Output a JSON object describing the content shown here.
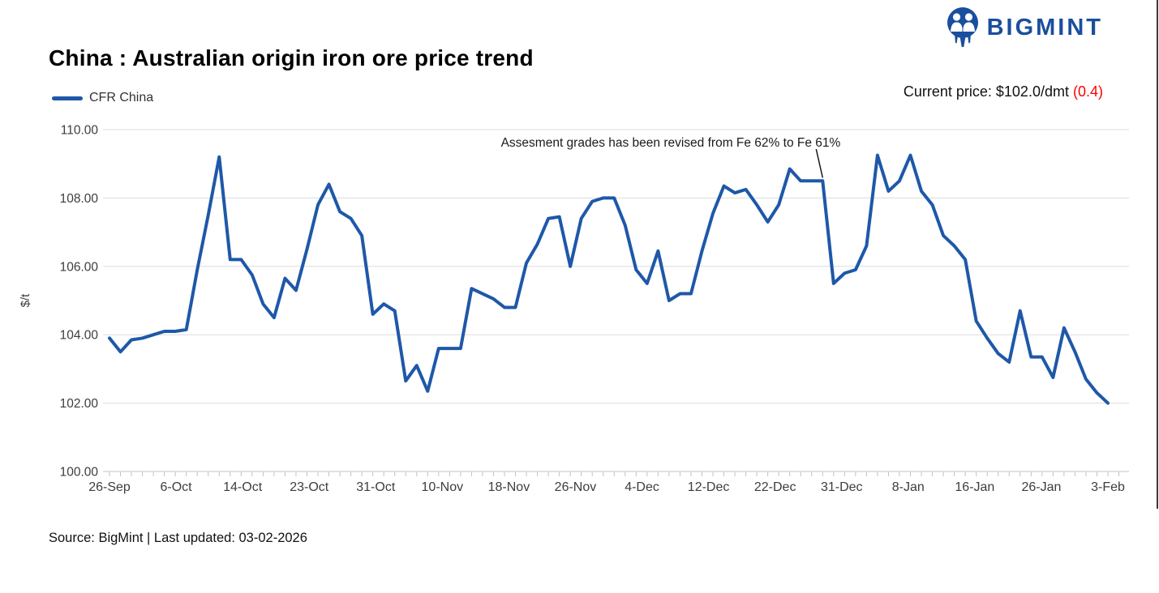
{
  "branding": {
    "logo_text": "BIGMINT",
    "logo_color": "#1a4e9e"
  },
  "header": {
    "title": "China : Australian origin iron ore price trend"
  },
  "price_info": {
    "label": "Current price: $102.0/dmt",
    "change": "(0.4)",
    "change_color": "#ff0000"
  },
  "legend": {
    "series_label": "CFR China"
  },
  "footer": {
    "source": "Source: BigMint | Last updated: 03-02-2026"
  },
  "chart_data": {
    "type": "line",
    "title": "China : Australian origin iron ore price trend",
    "ylabel": "$/t",
    "ylim": [
      100,
      110
    ],
    "grid": "horizontal",
    "legend_position": "top-left",
    "line_color": "#1e58a8",
    "grid_color": "#dcdcdc",
    "axis_color": "#c3c3c3",
    "tick_label_color": "#3d3d3d",
    "y_tick_labels": [
      "110.00",
      "108.00",
      "106.00",
      "104.00",
      "102.00",
      "100.00"
    ],
    "x_tick_labels": [
      "26-Sep",
      "6-Oct",
      "14-Oct",
      "23-Oct",
      "31-Oct",
      "10-Nov",
      "18-Nov",
      "26-Nov",
      "4-Dec",
      "12-Dec",
      "22-Dec",
      "31-Dec",
      "8-Jan",
      "16-Jan",
      "26-Jan",
      "3-Feb"
    ],
    "series": [
      {
        "name": "CFR China",
        "values": [
          103.9,
          103.5,
          103.85,
          103.9,
          104.0,
          104.1,
          104.1,
          104.15,
          105.9,
          107.5,
          109.2,
          106.2,
          106.2,
          105.75,
          104.9,
          104.5,
          105.65,
          105.3,
          106.5,
          107.8,
          108.4,
          107.6,
          107.4,
          106.9,
          104.6,
          104.9,
          104.7,
          102.65,
          103.1,
          102.35,
          103.6,
          103.6,
          103.6,
          105.35,
          105.2,
          105.05,
          104.8,
          104.8,
          106.1,
          106.65,
          107.4,
          107.45,
          106.0,
          107.4,
          107.9,
          108.0,
          108.0,
          107.2,
          105.9,
          105.5,
          106.45,
          105.0,
          105.2,
          105.2,
          106.45,
          107.55,
          108.35,
          108.15,
          108.25,
          107.8,
          107.3,
          107.8,
          108.85,
          108.5,
          108.5,
          108.5,
          105.5,
          105.8,
          105.9,
          106.6,
          109.25,
          108.2,
          108.5,
          109.25,
          108.2,
          107.8,
          106.9,
          106.6,
          106.2,
          104.4,
          103.9,
          103.45,
          103.2,
          104.7,
          103.35,
          103.35,
          102.75,
          104.2,
          103.5,
          102.7,
          102.3,
          102.0
        ]
      }
    ],
    "annotation": {
      "text": "Assesment grades has been revised from Fe 62% to Fe 61%",
      "point_index": 65
    }
  }
}
